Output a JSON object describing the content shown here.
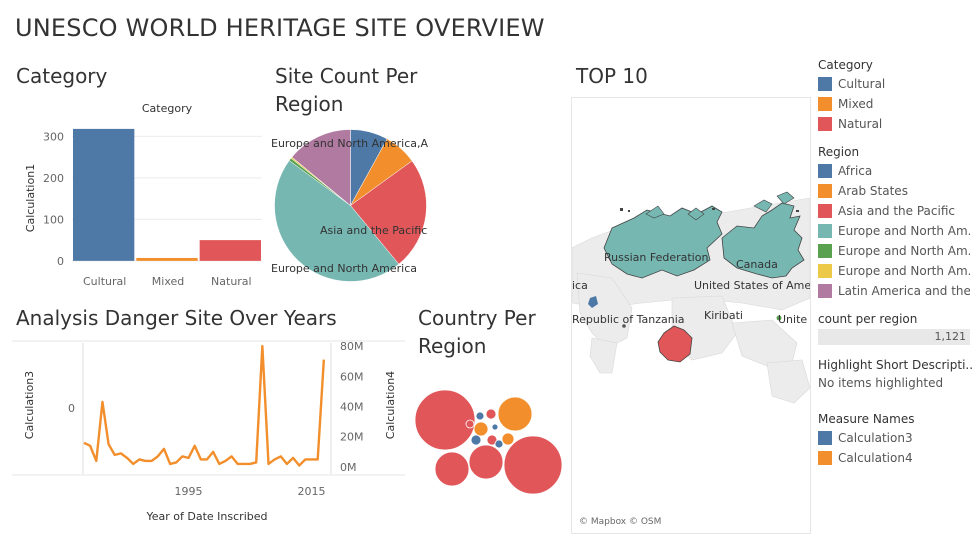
{
  "dashboard": {
    "title": "UNESCO WORLD HERITAGE SITE OVERVIEW"
  },
  "category_sheet": {
    "title": "Category",
    "chart_data": {
      "type": "bar",
      "title": "Category",
      "ylabel": "Calculation1",
      "categories": [
        "Cultural",
        "Mixed",
        "Natural"
      ],
      "values": [
        318,
        7,
        50
      ],
      "colors": [
        "#4e79a7",
        "#f28e2b",
        "#e15759"
      ],
      "ylim": [
        -22,
        325
      ],
      "ticks": [
        0,
        100,
        200,
        300
      ]
    }
  },
  "pie_sheet": {
    "title": "Site Count Per Region",
    "chart_data": {
      "type": "pie",
      "series": [
        {
          "name": "Africa",
          "value": 8,
          "color": "#4e79a7"
        },
        {
          "name": "Arab States",
          "value": 7,
          "color": "#f28e2b"
        },
        {
          "name": "Asia and the Pacific",
          "value": 24,
          "color": "#e15759"
        },
        {
          "name": "Europe and North America",
          "value": 46,
          "color": "#76b7b2"
        },
        {
          "name": "Europe and North America,A",
          "value": 0.6,
          "color": "#59a14f"
        },
        {
          "name": "Europe and North Am...",
          "value": 0.3,
          "color": "#edc948"
        },
        {
          "name": "Latin America and the...",
          "value": 14,
          "color": "#b07aa1"
        }
      ],
      "labels": [
        "Europe and North America,A",
        "Asia and the Pacific",
        "Europe and North America"
      ]
    }
  },
  "top10": {
    "title": "TOP 10",
    "credit": "© Mapbox © OSM",
    "labels": [
      "Russian Federation",
      "Canada",
      "ica",
      "United States of Ame",
      "Republic of Tanzania",
      "Kiribati",
      "Unite"
    ]
  },
  "danger_sheet": {
    "title": "Analysis Danger Site Over Years",
    "chart_data": {
      "type": "line",
      "xlabel": "Year of Date Inscribed",
      "ylabel_left": "Calculation3",
      "ylabel_right": "Calculation4",
      "left_ticks": [
        "0"
      ],
      "right_ticks": [
        "0M",
        "20M",
        "40M",
        "60M",
        "80M"
      ],
      "x_ticks": [
        1995,
        2015
      ],
      "xlim": [
        1978,
        2018
      ],
      "ylim": [
        -2,
        82
      ],
      "series": [
        {
          "name": "Calculation4",
          "color": "#f28e2b",
          "x": [
            1978,
            1979,
            1980,
            1981,
            1982,
            1983,
            1984,
            1985,
            1986,
            1987,
            1988,
            1989,
            1990,
            1991,
            1992,
            1993,
            1994,
            1995,
            1996,
            1997,
            1998,
            1999,
            2000,
            2001,
            2002,
            2003,
            2004,
            2005,
            2006,
            2007,
            2008,
            2009,
            2010,
            2011,
            2012,
            2013,
            2014,
            2015,
            2016,
            2017
          ],
          "y": [
            16,
            14,
            4,
            43,
            15,
            8,
            9,
            6,
            2,
            5,
            4,
            4,
            7,
            12,
            2,
            3,
            7,
            6,
            14,
            5,
            5,
            10,
            2,
            4,
            7,
            2,
            2,
            2,
            3,
            80,
            2,
            5,
            7,
            2,
            6,
            1,
            5,
            5,
            5,
            71
          ]
        }
      ]
    }
  },
  "country_sheet": {
    "title": "Country Per Region",
    "chart_data": {
      "type": "bubble",
      "bubbles": [
        {
          "x": 445,
          "y": 420,
          "r": 30,
          "c": "#e15759"
        },
        {
          "x": 533,
          "y": 465,
          "r": 29,
          "c": "#e15759"
        },
        {
          "x": 452,
          "y": 469,
          "r": 17,
          "c": "#e15759"
        },
        {
          "x": 486,
          "y": 462,
          "r": 17,
          "c": "#e15759"
        },
        {
          "x": 515,
          "y": 414,
          "r": 17,
          "c": "#f28e2b"
        },
        {
          "x": 492,
          "y": 440,
          "r": 5,
          "c": "#e15759"
        },
        {
          "x": 481,
          "y": 429,
          "r": 7,
          "c": "#f28e2b"
        },
        {
          "x": 491,
          "y": 414,
          "r": 5,
          "c": "#e15759"
        },
        {
          "x": 480,
          "y": 416,
          "r": 4,
          "c": "#4e79a7"
        },
        {
          "x": 476,
          "y": 440,
          "r": 5,
          "c": "#4e79a7"
        },
        {
          "x": 495,
          "y": 427,
          "r": 3,
          "c": "#4e79a7"
        },
        {
          "x": 508,
          "y": 439,
          "r": 6,
          "c": "#f28e2b"
        },
        {
          "x": 499,
          "y": 444,
          "r": 4,
          "c": "#4e79a7"
        },
        {
          "x": 470,
          "y": 424,
          "r": 4,
          "c": "#e15759"
        }
      ]
    }
  },
  "legend": {
    "category": {
      "title": "Category",
      "items": [
        {
          "label": "Cultural",
          "color": "#4e79a7"
        },
        {
          "label": "Mixed",
          "color": "#f28e2b"
        },
        {
          "label": "Natural",
          "color": "#e15759"
        }
      ]
    },
    "region": {
      "title": "Region",
      "items": [
        {
          "label": "Africa",
          "color": "#4e79a7"
        },
        {
          "label": "Arab States",
          "color": "#f28e2b"
        },
        {
          "label": "Asia and the Pacific",
          "color": "#e15759"
        },
        {
          "label": "Europe and North Am..",
          "color": "#76b7b2"
        },
        {
          "label": "Europe and North Am..",
          "color": "#59a14f"
        },
        {
          "label": "Europe and North Am..",
          "color": "#edc948"
        },
        {
          "label": "Latin America and the..",
          "color": "#b07aa1"
        }
      ]
    },
    "count": {
      "title": "count per region",
      "value": "1,121"
    },
    "highlight": {
      "title": "Highlight Short Descripti..",
      "empty": "No items highlighted"
    },
    "measure": {
      "title": "Measure Names",
      "items": [
        {
          "label": "Calculation3",
          "color": "#4e79a7"
        },
        {
          "label": "Calculation4",
          "color": "#f28e2b"
        }
      ]
    }
  }
}
